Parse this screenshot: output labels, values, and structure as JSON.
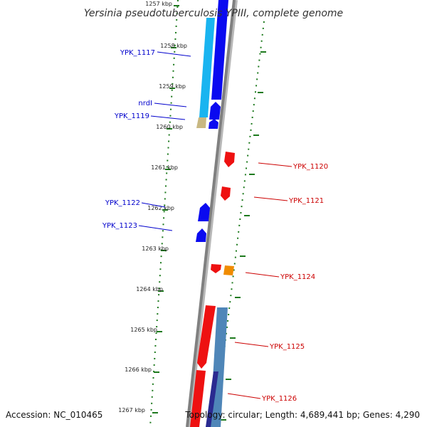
{
  "title": "Yersinia pseudotuberculosis YPIII, complete genome",
  "accession": "Accession: NC_010465",
  "topology": "Topology: circular; Length: 4,689,441 bp; Genes: 4,290",
  "colors": {
    "backbone": "#808080",
    "tick": "#1e7a1e",
    "minus_label": "#0000cc",
    "plus_label": "#cc0000",
    "gene_blue": "#0a0af0",
    "gene_cyan": "#19b4f0",
    "gene_red": "#ee1111",
    "gene_orange": "#f08c00",
    "gene_steel": "#4f86b8",
    "gene_tan": "#c8b882"
  },
  "ticks": [
    "1257 kbp",
    "1258 kbp",
    "1259 kbp",
    "1260 kbp",
    "1261 kbp",
    "1262 kbp",
    "1263 kbp",
    "1264 kbp",
    "1265 kbp",
    "1266 kbp",
    "1267 kbp"
  ],
  "minus_labels": [
    "YPK_1117",
    "nrdI",
    "YPK_1119",
    "YPK_1122",
    "YPK_1123"
  ],
  "plus_labels": [
    "YPK_1120",
    "YPK_1121",
    "YPK_1124",
    "YPK_1125",
    "YPK_1126"
  ]
}
